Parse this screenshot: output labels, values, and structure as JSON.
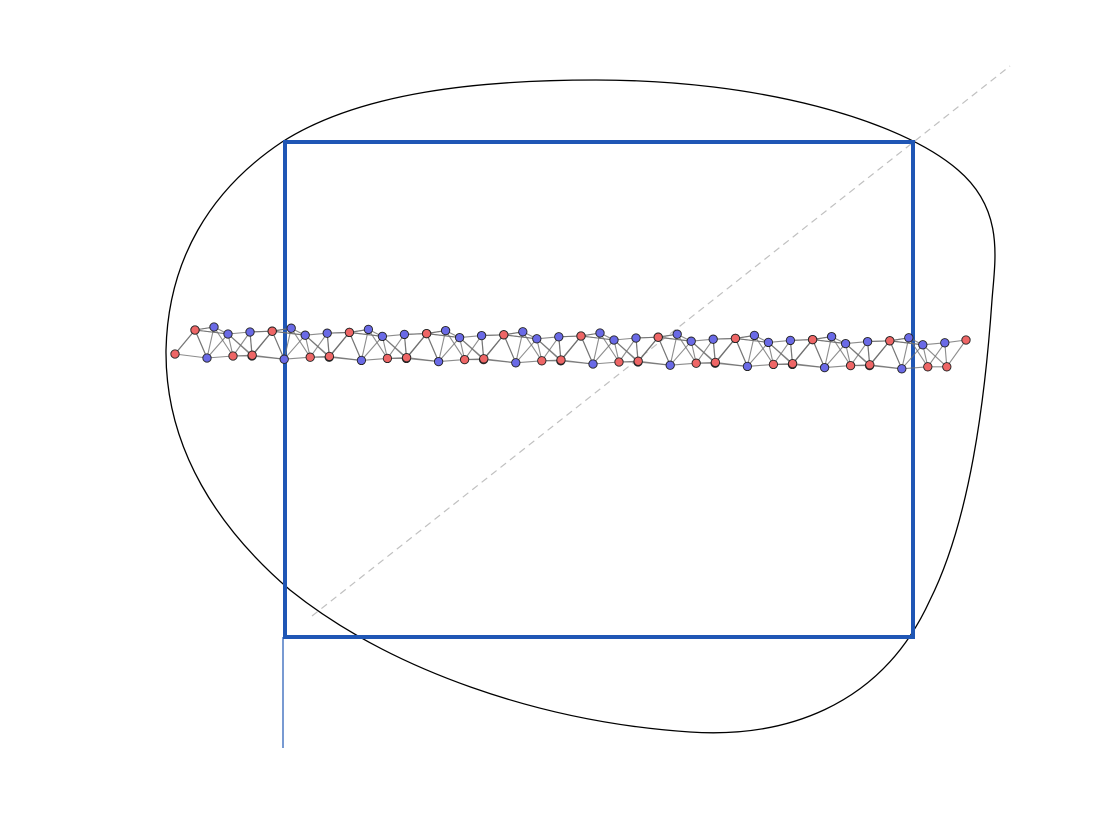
{
  "colors": {
    "background": "#ffffff",
    "outline": "#000000",
    "frame": "#1f56b5",
    "diagonal": "#c0c0c0",
    "edge": "#707070",
    "node_stroke": "#222222",
    "node_red": "#ee6666",
    "node_blue": "#6a6ae6"
  },
  "nodes": {
    "units": 10,
    "pattern": [
      "red",
      "blue",
      "blue",
      "blue",
      "blue",
      "red",
      "blue",
      "red"
    ],
    "end_cap": "red"
  }
}
